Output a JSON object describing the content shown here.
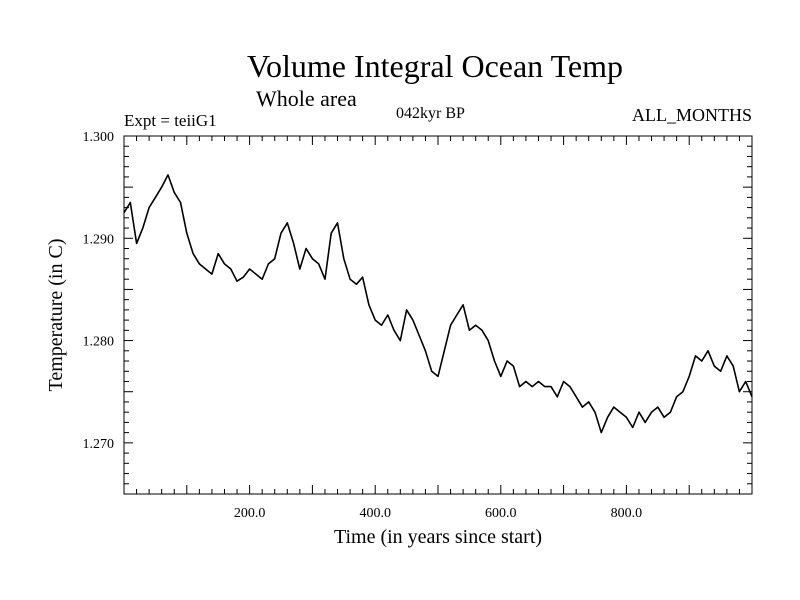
{
  "chart_data": {
    "type": "line",
    "title": "Volume Integral Ocean Temp",
    "subtitle": "Whole area",
    "annotations": {
      "experiment": "Expt = teiiG1",
      "period": "042kyr BP",
      "months": "ALL_MONTHS"
    },
    "xlabel": "Time (in years since start)",
    "ylabel": "Temperature (in C)",
    "xlim": [
      0,
      1000
    ],
    "ylim": [
      1.265,
      1.3
    ],
    "x_ticks": [
      200,
      400,
      600,
      800
    ],
    "x_tick_labels": [
      "200.0",
      "400.0",
      "600.0",
      "800.0"
    ],
    "y_ticks": [
      1.27,
      1.28,
      1.29,
      1.3
    ],
    "y_tick_labels": [
      "1.270",
      "1.280",
      "1.290",
      "1.300"
    ],
    "grid": false,
    "line_color": "#000000",
    "series": [
      {
        "x": [
          0,
          10,
          20,
          30,
          40,
          50,
          60,
          70,
          80,
          90,
          100,
          110,
          120,
          130,
          140,
          150,
          160,
          170,
          180,
          190,
          200,
          210,
          220,
          230,
          240,
          250,
          260,
          270,
          280,
          290,
          300,
          310,
          320,
          330,
          340,
          350,
          360,
          370,
          380,
          390,
          400,
          410,
          420,
          430,
          440,
          450,
          460,
          470,
          480,
          490,
          500,
          510,
          520,
          530,
          540,
          550,
          560,
          570,
          580,
          590,
          600,
          610,
          620,
          630,
          640,
          650,
          660,
          670,
          680,
          690,
          700,
          710,
          720,
          730,
          740,
          750,
          760,
          770,
          780,
          790,
          800,
          810,
          820,
          830,
          840,
          850,
          860,
          870,
          880,
          890,
          900,
          910,
          920,
          930,
          940,
          950,
          960,
          970,
          980,
          990,
          1000
        ],
        "values": [
          1.2925,
          1.2935,
          1.2895,
          1.291,
          1.293,
          1.294,
          1.295,
          1.2962,
          1.2945,
          1.2935,
          1.2905,
          1.2885,
          1.2875,
          1.287,
          1.2865,
          1.2885,
          1.2875,
          1.287,
          1.2858,
          1.2862,
          1.287,
          1.2865,
          1.286,
          1.2875,
          1.288,
          1.2905,
          1.2915,
          1.2895,
          1.287,
          1.289,
          1.288,
          1.2875,
          1.286,
          1.2905,
          1.2915,
          1.288,
          1.286,
          1.2855,
          1.2862,
          1.2835,
          1.282,
          1.2815,
          1.2825,
          1.281,
          1.28,
          1.283,
          1.282,
          1.2805,
          1.279,
          1.277,
          1.2765,
          1.279,
          1.2815,
          1.2825,
          1.2835,
          1.281,
          1.2815,
          1.281,
          1.28,
          1.278,
          1.2765,
          1.278,
          1.2775,
          1.2755,
          1.276,
          1.2755,
          1.276,
          1.2755,
          1.2755,
          1.2745,
          1.276,
          1.2755,
          1.2745,
          1.2735,
          1.274,
          1.273,
          1.271,
          1.2725,
          1.2735,
          1.273,
          1.2725,
          1.2715,
          1.273,
          1.272,
          1.273,
          1.2735,
          1.2725,
          1.273,
          1.2745,
          1.275,
          1.2765,
          1.2785,
          1.278,
          1.279,
          1.2775,
          1.277,
          1.2785,
          1.2775,
          1.275,
          1.276,
          1.2745
        ]
      }
    ]
  }
}
